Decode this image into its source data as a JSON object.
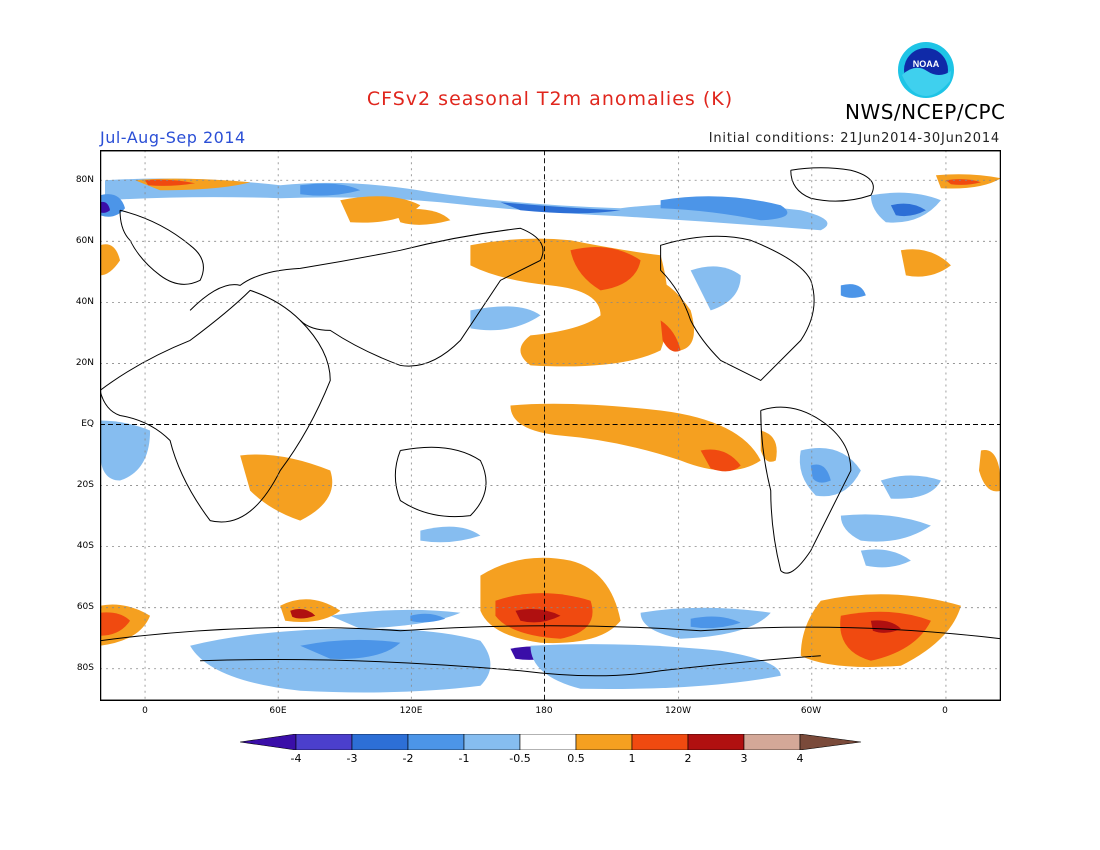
{
  "header": {
    "title": "CFSv2 seasonal T2m anomalies (K)",
    "organization": "NWS/NCEP/CPC",
    "season": "Jul-Aug-Sep 2014",
    "initial_conditions": "Initial conditions: 21Jun2014-30Jun2014",
    "logo_text": "NOAA",
    "logo_icon": "noaa-logo-icon"
  },
  "map": {
    "lat_labels": [
      "80N",
      "60N",
      "40N",
      "20N",
      "EQ",
      "20S",
      "40S",
      "60S",
      "80S"
    ],
    "lon_labels": [
      "0",
      "60E",
      "120E",
      "180",
      "120W",
      "60W",
      "0"
    ]
  },
  "colorbar": {
    "labels": [
      "-4",
      "-3",
      "-2",
      "-1",
      "-0.5",
      "0.5",
      "1",
      "2",
      "3",
      "4"
    ],
    "colors": [
      "#3a0ea8",
      "#4b3fcc",
      "#2d6fd6",
      "#4c95e8",
      "#86bdf0",
      "#ffffff",
      "#f5a020",
      "#f04a10",
      "#b01010",
      "#d4a898",
      "#7a4a3a"
    ]
  }
}
